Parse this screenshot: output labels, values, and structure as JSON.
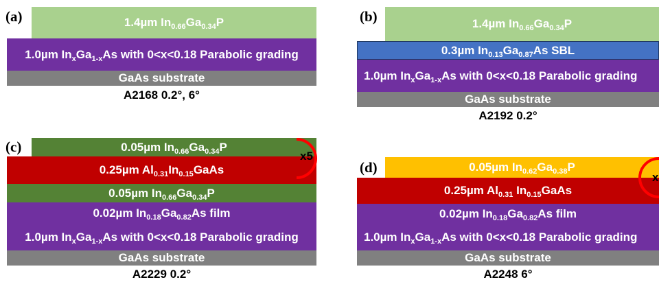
{
  "colors": {
    "ingap_light": "#a9d18e",
    "ingap_dark": "#548235",
    "graded": "#7030a0",
    "substrate": "#808080",
    "sbl": "#4472c4",
    "algaas": "#c00000",
    "orange": "#ffc000",
    "ring": "#ff0000"
  },
  "panels": [
    {
      "label": "(a)",
      "caption": "A2168 0.2°, 6°",
      "layers": [
        {
          "pre": "1.4µm In",
          "s1": "0.66",
          "m1": "Ga",
          "s2": "0.34",
          "post": "P"
        },
        {
          "pre": "1.0µm In",
          "s1": "x",
          "m1": "Ga",
          "s2": "1-x",
          "post": "As with 0<x<0.18 Parabolic grading"
        },
        {
          "pre": "GaAs substrate"
        }
      ]
    },
    {
      "label": "(b)",
      "caption": "A2192 0.2°",
      "layers": [
        {
          "pre": "1.4µm In",
          "s1": "0.66",
          "m1": "Ga",
          "s2": "0.34",
          "post": "P"
        },
        {
          "pre": "0.3µm In",
          "s1": "0.13",
          "m1": "Ga",
          "s2": "0.87",
          "post": "As SBL"
        },
        {
          "pre": "1.0µm In",
          "s1": "x",
          "m1": "Ga",
          "s2": "1-x",
          "post": "As with 0<x<0.18 Parabolic grading"
        },
        {
          "pre": "GaAs substrate"
        }
      ]
    },
    {
      "label": "(c)",
      "caption": "A2229 0.2°",
      "multiplier": "x5",
      "layers": [
        {
          "pre": "0.05µm In",
          "s1": "0.66",
          "m1": "Ga",
          "s2": "0.34",
          "post": "P"
        },
        {
          "pre": "0.25µm Al",
          "s1": "0.31",
          "m1": "In",
          "s2": "0.15",
          "post": "GaAs"
        },
        {
          "pre": "0.05µm In",
          "s1": "0.66",
          "m1": "Ga",
          "s2": "0.34",
          "post": "P"
        },
        {
          "pre": "0.02µm In",
          "s1": "0.18",
          "m1": "Ga",
          "s2": "0.82",
          "post": "As film"
        },
        {
          "pre": "1.0µm In",
          "s1": "x",
          "m1": "Ga",
          "s2": "1-x",
          "post": "As with 0<x<0.18 Parabolic grading"
        },
        {
          "pre": "GaAs substrate"
        }
      ]
    },
    {
      "label": "(d)",
      "caption": "A2248 6°",
      "multiplier": "x",
      "layers": [
        {
          "pre": "0.05µm In",
          "s1": "0.62",
          "m1": "Ga",
          "s2": "0.38",
          "post": "P"
        },
        {
          "pre": "0.25µm Al",
          "s1": "0.31",
          "m1": " In",
          "s2": "0.15",
          "post": "GaAs"
        },
        {
          "pre": "0.02µm In",
          "s1": "0.18",
          "m1": "Ga",
          "s2": "0.82",
          "post": "As film"
        },
        {
          "pre": "1.0µm In",
          "s1": "x",
          "m1": "Ga",
          "s2": "1-x",
          "post": "As with 0<x<0.18 Parabolic grading"
        },
        {
          "pre": "GaAs substrate"
        }
      ]
    }
  ]
}
